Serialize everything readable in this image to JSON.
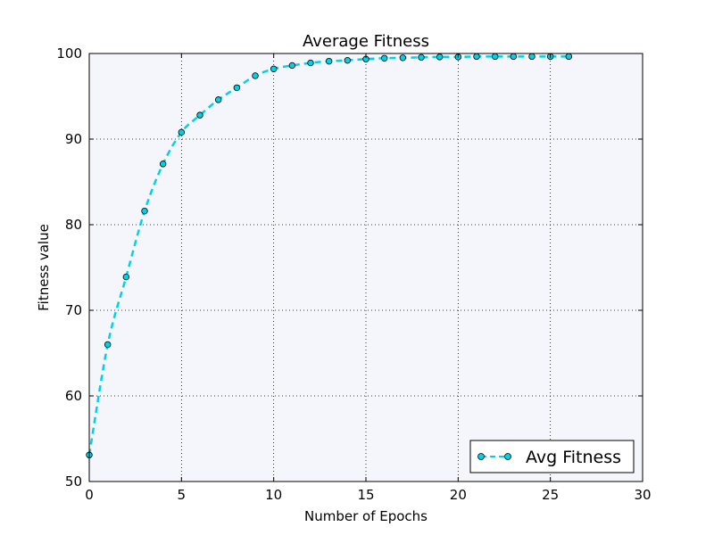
{
  "chart_data": {
    "type": "line",
    "title": "Average Fitness",
    "xlabel": "Number of Epochs",
    "ylabel": "Fitness value",
    "xlim": [
      0,
      30
    ],
    "ylim": [
      50,
      100
    ],
    "xticks": [
      0,
      5,
      10,
      15,
      20,
      25,
      30
    ],
    "yticks": [
      50,
      60,
      70,
      80,
      90,
      100
    ],
    "grid": true,
    "legend_position": "lower-right",
    "background_color": "#f4f6fb",
    "series": [
      {
        "name": "Avg Fitness",
        "color": "#00d2e6",
        "line_style": "dashed",
        "marker": "circle",
        "x": [
          0,
          1,
          2,
          3,
          4,
          5,
          6,
          7,
          8,
          9,
          10,
          11,
          12,
          13,
          14,
          15,
          16,
          17,
          18,
          19,
          20,
          21,
          22,
          23,
          24,
          25,
          26
        ],
        "values": [
          53.1,
          66.0,
          73.9,
          81.6,
          87.1,
          90.8,
          92.8,
          94.6,
          96.0,
          97.4,
          98.2,
          98.6,
          98.9,
          99.1,
          99.2,
          99.35,
          99.45,
          99.5,
          99.55,
          99.6,
          99.6,
          99.65,
          99.65,
          99.65,
          99.65,
          99.65,
          99.65
        ]
      }
    ]
  }
}
